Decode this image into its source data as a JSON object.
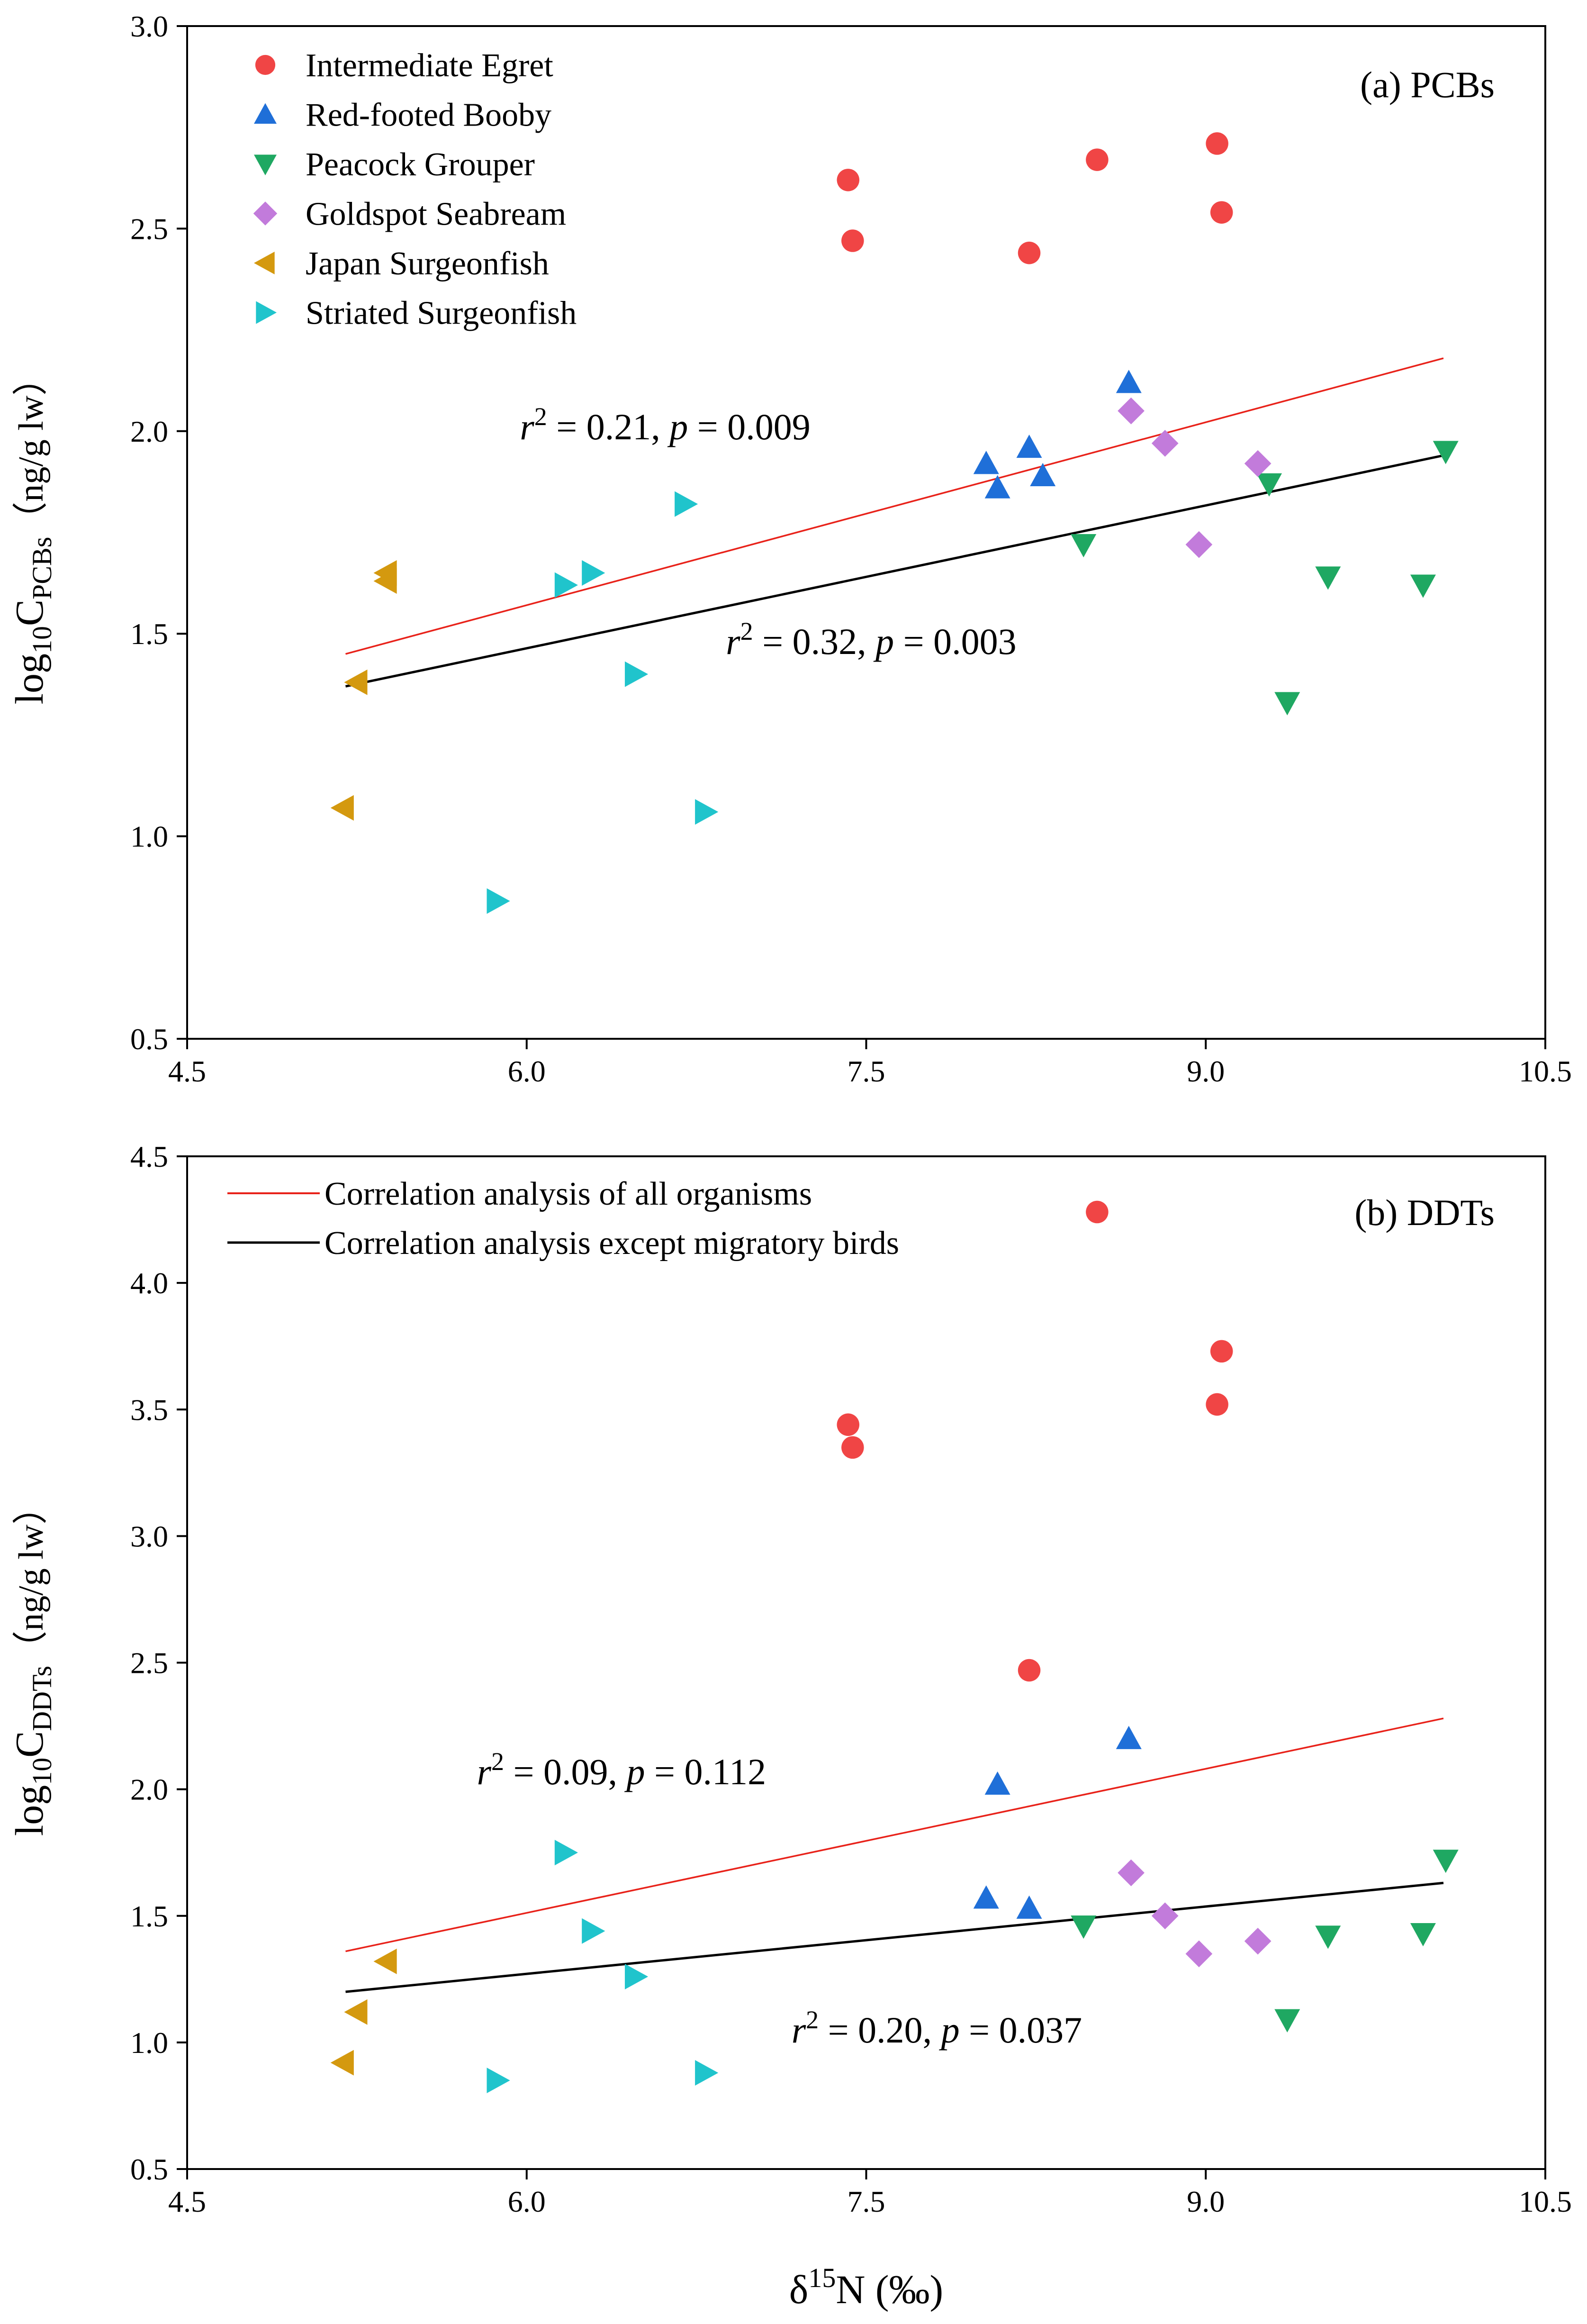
{
  "figure": {
    "xlabel": "δ15N (‰)",
    "xlabel_base": "δ",
    "xlabel_sup": "15",
    "xlabel_rest": "N (‰)"
  },
  "colors": {
    "Intermediate Egret": "#F04545",
    "Red-footed Booby": "#1F6FD8",
    "Peacock Grouper": "#1FA862",
    "Goldspot Seabream": "#C27BDB",
    "Japan Surgeonfish": "#D4990F",
    "Striated Surgeonfish": "#20C4CC",
    "line_all": "#E8221A",
    "line_except": "#000000"
  },
  "chart_data": [
    {
      "type": "scatter",
      "panel_label": "(a) PCBs",
      "ylabel": "log10CPCBs（ng/g lw）",
      "ylabel_base": "log",
      "ylabel_sub1": "10",
      "ylabel_mid": "C",
      "ylabel_sub2": "PCBs",
      "ylabel_unit": "（ng/g lw）",
      "xlim": [
        4.5,
        10.5
      ],
      "ylim": [
        0.5,
        3.0
      ],
      "xticks": [
        4.5,
        6.0,
        7.5,
        9.0,
        10.5
      ],
      "xtick_labels": [
        "4.5",
        "6.0",
        "7.5",
        "9.0",
        "10.5"
      ],
      "yticks": [
        0.5,
        1.0,
        1.5,
        2.0,
        2.5,
        3.0
      ],
      "ytick_labels": [
        "0.5",
        "1.0",
        "1.5",
        "2.0",
        "2.5",
        "3.0"
      ],
      "legend_position": "top-left",
      "legend": [
        "Intermediate Egret",
        "Red-footed Booby",
        "Peacock Grouper",
        "Goldspot Seabream",
        "Japan Surgeonfish",
        "Striated Surgeonfish"
      ],
      "series": [
        {
          "name": "Intermediate Egret",
          "marker": "circle",
          "x": [
            7.42,
            7.44,
            8.22,
            8.52,
            9.05,
            9.07
          ],
          "y": [
            2.62,
            2.47,
            2.44,
            2.67,
            2.71,
            2.54
          ]
        },
        {
          "name": "Red-footed Booby",
          "marker": "triangle-up",
          "x": [
            8.03,
            8.08,
            8.22,
            8.28,
            8.66
          ],
          "y": [
            1.92,
            1.86,
            1.96,
            1.89,
            2.12
          ]
        },
        {
          "name": "Peacock Grouper",
          "marker": "triangle-down",
          "x": [
            8.46,
            9.28,
            9.36,
            9.54,
            9.96,
            10.06
          ],
          "y": [
            1.72,
            1.87,
            1.33,
            1.64,
            1.62,
            1.95
          ]
        },
        {
          "name": "Goldspot Seabream",
          "marker": "diamond",
          "x": [
            8.67,
            8.82,
            8.97,
            9.23
          ],
          "y": [
            2.05,
            1.97,
            1.72,
            1.92
          ]
        },
        {
          "name": "Japan Surgeonfish",
          "marker": "triangle-left",
          "x": [
            5.19,
            5.25,
            5.38,
            5.38
          ],
          "y": [
            1.07,
            1.38,
            1.63,
            1.65
          ]
        },
        {
          "name": "Striated Surgeonfish",
          "marker": "triangle-right",
          "x": [
            5.87,
            6.17,
            6.29,
            6.48,
            6.7,
            6.79
          ],
          "y": [
            0.84,
            1.62,
            1.65,
            1.4,
            1.82,
            1.06
          ]
        }
      ],
      "lines": [
        {
          "name": "Correlation analysis of all organisms",
          "x": [
            5.2,
            10.05
          ],
          "y": [
            1.45,
            2.18
          ],
          "color_key": "line_all"
        },
        {
          "name": "Correlation analysis except migratory birds",
          "x": [
            5.2,
            10.05
          ],
          "y": [
            1.37,
            1.94
          ],
          "color_key": "line_except"
        }
      ],
      "annotations": [
        {
          "r_sym": "r",
          "r_sup": "2",
          "r_value": " = 0.21,  ",
          "p_sym": "p",
          "p_value": " = 0.009",
          "text": "r2 = 0.21,  p = 0.009",
          "x": 5.97,
          "y": 1.98
        },
        {
          "r_sym": "r",
          "r_sup": "2",
          "r_value": " = 0.32,  ",
          "p_sym": "p",
          "p_value": " = 0.003",
          "text": "r2 = 0.32,  p = 0.003",
          "x": 6.88,
          "y": 1.45
        }
      ]
    },
    {
      "type": "scatter",
      "panel_label": "(b) DDTs",
      "ylabel": "log10CDDTs（ng/g lw）",
      "ylabel_base": "log",
      "ylabel_sub1": "10",
      "ylabel_mid": "C",
      "ylabel_sub2": "DDTs",
      "ylabel_unit": "（ng/g lw）",
      "xlim": [
        4.5,
        10.5
      ],
      "ylim": [
        0.5,
        4.5
      ],
      "xticks": [
        4.5,
        6.0,
        7.5,
        9.0,
        10.5
      ],
      "xtick_labels": [
        "4.5",
        "6.0",
        "7.5",
        "9.0",
        "10.5"
      ],
      "yticks": [
        0.5,
        1.0,
        1.5,
        2.0,
        2.5,
        3.0,
        3.5,
        4.0,
        4.5
      ],
      "ytick_labels": [
        "0.5",
        "1.0",
        "1.5",
        "2.0",
        "2.5",
        "3.0",
        "3.5",
        "4.0",
        "4.5"
      ],
      "legend_position": "top-left",
      "legend": [
        "Correlation analysis of all organisms",
        "Correlation analysis except migratory birds"
      ],
      "series": [
        {
          "name": "Intermediate Egret",
          "marker": "circle",
          "x": [
            7.42,
            7.44,
            8.22,
            8.52,
            9.05,
            9.07
          ],
          "y": [
            3.44,
            3.35,
            2.47,
            4.28,
            3.52,
            3.73
          ]
        },
        {
          "name": "Red-footed Booby",
          "marker": "triangle-up",
          "x": [
            8.03,
            8.08,
            8.22,
            8.66
          ],
          "y": [
            1.57,
            2.02,
            1.53,
            2.2
          ]
        },
        {
          "name": "Peacock Grouper",
          "marker": "triangle-down",
          "x": [
            8.46,
            9.36,
            9.54,
            9.96,
            10.06
          ],
          "y": [
            1.46,
            1.09,
            1.42,
            1.43,
            1.72
          ]
        },
        {
          "name": "Goldspot Seabream",
          "marker": "diamond",
          "x": [
            8.67,
            8.82,
            8.97,
            9.23
          ],
          "y": [
            1.67,
            1.5,
            1.35,
            1.4
          ]
        },
        {
          "name": "Japan Surgeonfish",
          "marker": "triangle-left",
          "x": [
            5.19,
            5.25,
            5.38
          ],
          "y": [
            0.92,
            1.12,
            1.32
          ]
        },
        {
          "name": "Striated Surgeonfish",
          "marker": "triangle-right",
          "x": [
            5.87,
            6.17,
            6.29,
            6.48,
            6.79
          ],
          "y": [
            0.85,
            1.75,
            1.44,
            1.26,
            0.88
          ]
        }
      ],
      "lines": [
        {
          "name": "Correlation analysis of all organisms",
          "x": [
            5.2,
            10.05
          ],
          "y": [
            1.36,
            2.28
          ],
          "color_key": "line_all"
        },
        {
          "name": "Correlation analysis except migratory birds",
          "x": [
            5.2,
            10.05
          ],
          "y": [
            1.2,
            1.63
          ],
          "color_key": "line_except"
        }
      ],
      "annotations": [
        {
          "r_sym": "r",
          "r_sup": "2",
          "r_value": " = 0.09,  ",
          "p_sym": "p",
          "p_value": " = 0.112",
          "text": "r2 = 0.09,  p = 0.112",
          "x": 5.78,
          "y": 2.02
        },
        {
          "r_sym": "r",
          "r_sup": "2",
          "r_value": " = 0.20,  ",
          "p_sym": "p",
          "p_value": " = 0.037",
          "text": "r2 = 0.20,  p = 0.037",
          "x": 7.17,
          "y": 1.0
        }
      ]
    }
  ]
}
